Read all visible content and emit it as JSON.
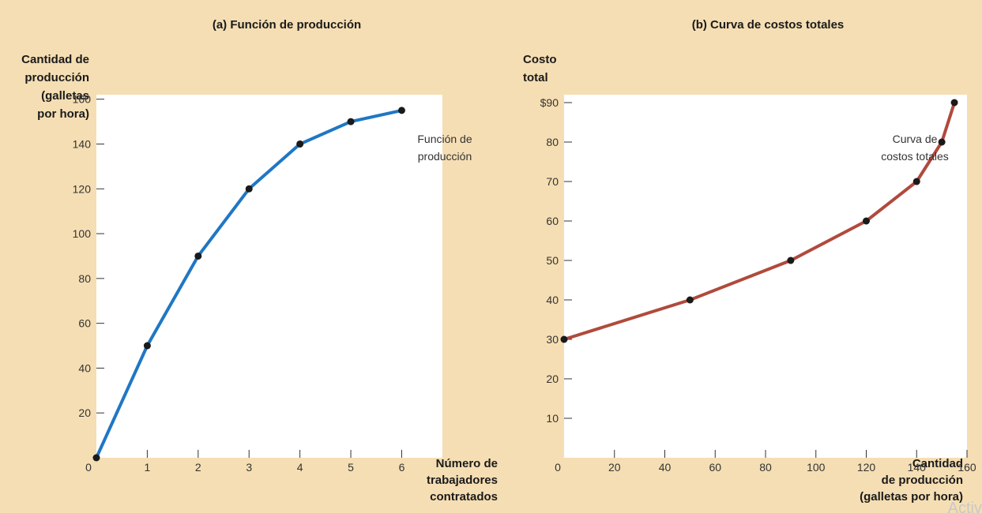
{
  "chart_data": [
    {
      "type": "line",
      "title": "(a) Función de producción",
      "ylabel": [
        "Cantidad de",
        "producción",
        "(galletas",
        "por hora)"
      ],
      "xlabel": [
        "Número de",
        "trabajadores",
        "contratados"
      ],
      "x_ticks": [
        "0",
        "1",
        "2",
        "3",
        "4",
        "5",
        "6"
      ],
      "y_ticks": [
        "20",
        "40",
        "60",
        "80",
        "100",
        "120",
        "140",
        "160"
      ],
      "xlim": [
        0,
        6.8
      ],
      "ylim": [
        0,
        162
      ],
      "annotation": [
        "Función de",
        "producción"
      ],
      "line_color": "#1f77c4",
      "series": [
        {
          "x": [
            0,
            1,
            2,
            3,
            4,
            5,
            6
          ],
          "y": [
            0,
            50,
            90,
            120,
            140,
            150,
            155
          ]
        }
      ]
    },
    {
      "type": "line",
      "title": "(b) Curva de costos totales",
      "ylabel": [
        "Costo",
        "total"
      ],
      "xlabel": [
        "Cantidad",
        "de producción",
        "(galletas por hora)"
      ],
      "x_ticks": [
        "20",
        "40",
        "60",
        "80",
        "100",
        "120",
        "140",
        "160"
      ],
      "x_origin": "0",
      "y_ticks": [
        "10",
        "20",
        "30",
        "40",
        "50",
        "60",
        "70",
        "80",
        "$90"
      ],
      "xlim": [
        0,
        160
      ],
      "ylim": [
        0,
        92
      ],
      "annotation": [
        "Curva de",
        "costos totales"
      ],
      "line_color": "#b04a3c",
      "series": [
        {
          "x": [
            0,
            50,
            90,
            120,
            140,
            150,
            155
          ],
          "y": [
            30,
            40,
            50,
            60,
            70,
            80,
            90
          ]
        }
      ]
    }
  ],
  "watermark": "Activ"
}
